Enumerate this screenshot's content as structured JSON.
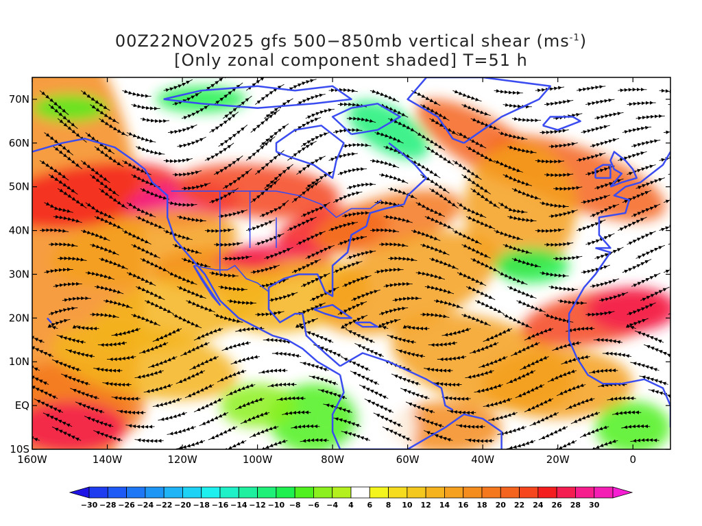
{
  "title": {
    "line1_main": "00Z22NOV2025 gfs 500−850mb vertical shear (ms",
    "line1_sup": "-1",
    "line1_end": ")",
    "line2": "[Only zonal component shaded] T=51 h"
  },
  "axes": {
    "lat_ticks": [
      "70N",
      "60N",
      "50N",
      "40N",
      "30N",
      "20N",
      "10N",
      "EQ",
      "10S"
    ],
    "lat_values": [
      70,
      60,
      50,
      40,
      30,
      20,
      10,
      0,
      -10
    ],
    "lon_ticks": [
      "160W",
      "140W",
      "120W",
      "100W",
      "80W",
      "60W",
      "40W",
      "20W",
      "0"
    ],
    "lon_values": [
      -160,
      -140,
      -120,
      -100,
      -80,
      -60,
      -40,
      -20,
      0
    ],
    "lat_range": [
      -10,
      75
    ],
    "lon_range": [
      -160,
      10
    ]
  },
  "colorbar": {
    "labels": [
      "-30",
      "-28",
      "-26",
      "-24",
      "-22",
      "-20",
      "-18",
      "-16",
      "-14",
      "-12",
      "-10",
      "-8",
      "-6",
      "-4",
      "4",
      "6",
      "8",
      "10",
      "12",
      "14",
      "16",
      "18",
      "20",
      "22",
      "24",
      "26",
      "28",
      "30"
    ],
    "colors": [
      "#1e14e6",
      "#1e3cf0",
      "#1e5af5",
      "#1e78f5",
      "#1e96f5",
      "#1eb4f5",
      "#1ed2f5",
      "#1ef0f0",
      "#1ef0c8",
      "#1ef0a0",
      "#1ef078",
      "#1ef050",
      "#50f01e",
      "#8cf01e",
      "#b4f01e",
      "#ffffff",
      "#f5f51e",
      "#f5dc1e",
      "#f5c81e",
      "#f5b41e",
      "#f5a01e",
      "#f58c1e",
      "#f5781e",
      "#f5641e",
      "#f5461e",
      "#f51e1e",
      "#f51e50",
      "#f51e8c",
      "#f51eb4",
      "#f51ed2"
    ]
  },
  "colors": {
    "coastline": "#3a4cf0",
    "streamline": "#000000",
    "frame": "#000000"
  }
}
